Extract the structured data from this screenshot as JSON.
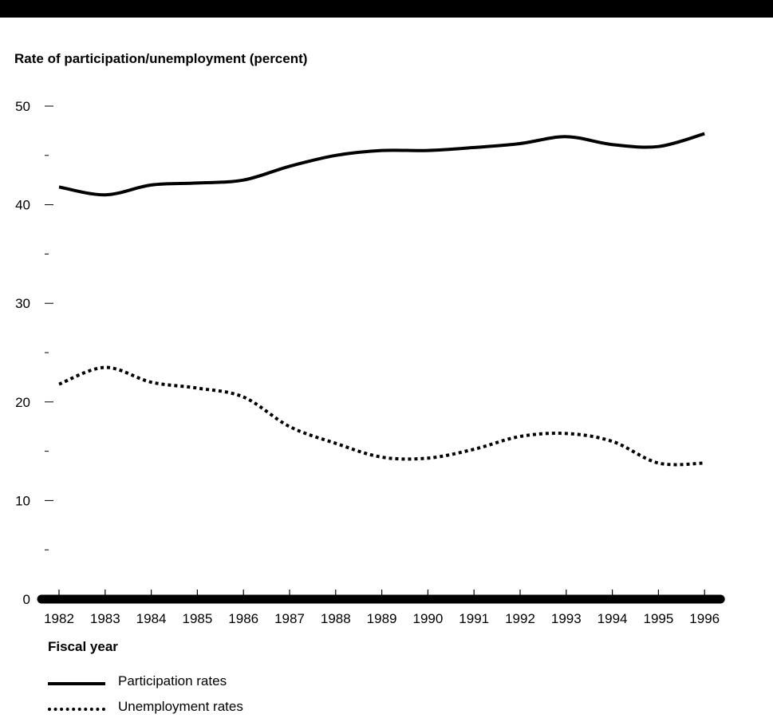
{
  "header_bar_color": "#000000",
  "chart_data": {
    "type": "line",
    "title": "",
    "ylabel": "Rate of participation/unemployment (percent)",
    "xlabel": "Fiscal year",
    "ylim": [
      0,
      50
    ],
    "y_ticks": [
      "0",
      "10",
      "20",
      "30",
      "40",
      "50"
    ],
    "x": [
      "1982",
      "1983",
      "1984",
      "1985",
      "1986",
      "1987",
      "1988",
      "1989",
      "1990",
      "1991",
      "1992",
      "1993",
      "1994",
      "1995",
      "1996"
    ],
    "series": [
      {
        "name": "Participation rates",
        "style": "solid",
        "color": "#000000",
        "values": [
          41.8,
          41.0,
          42.0,
          42.2,
          42.5,
          43.9,
          45.0,
          45.5,
          45.5,
          45.8,
          46.2,
          46.9,
          46.1,
          45.9,
          47.2
        ]
      },
      {
        "name": "Unemployment rates",
        "style": "dotted",
        "color": "#000000",
        "values": [
          21.8,
          23.5,
          22.0,
          21.4,
          20.5,
          17.5,
          15.8,
          14.4,
          14.3,
          15.2,
          16.5,
          16.8,
          16.0,
          13.8,
          13.8
        ]
      }
    ],
    "grid": false,
    "legend_position": "bottom-left"
  }
}
